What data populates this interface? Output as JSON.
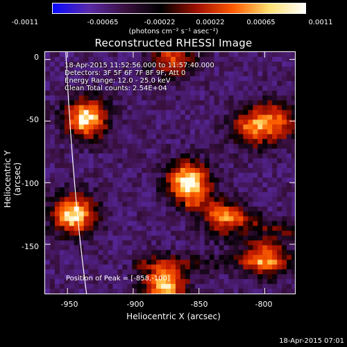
{
  "colorbar": {
    "ticks": [
      "-0.0011",
      "-0.00065",
      "-0.00022",
      "0.00022",
      "0.00065",
      "0.0011"
    ],
    "units": "(photons cm⁻² s⁻¹ asec⁻²)",
    "colors": [
      "#0a0aff",
      "#5a2aa8",
      "#3a1040",
      "#000000",
      "#a01000",
      "#ff5a00",
      "#ffe070",
      "#ffffff"
    ]
  },
  "title": "Reconstructed RHESSI Image",
  "info": {
    "time_range": "18-Apr-2015 11:52:56.000 to 11:57:40.000",
    "detectors": "Detectors: 3F 5F 6F 7F 8F 9F, Att 0",
    "energy_range": "Energy Range: 12.0 - 25.0 keV",
    "clean": "Clean     Total counts: 2.54E+04",
    "peak": "Position of Peak = [-858,-100]"
  },
  "axes": {
    "xlabel": "Heliocentric X (arcsec)",
    "ylabel": "Heliocentric Y (arcsec)",
    "xticks": [
      "-950",
      "-900",
      "-850",
      "-800"
    ],
    "yticks": [
      "0",
      "-50",
      "-100",
      "-150"
    ],
    "xlim": [
      -967,
      -777
    ],
    "ylim": [
      -190,
      6
    ]
  },
  "sources": [
    {
      "x": -936,
      "y": -48,
      "peak": 0.9
    },
    {
      "x": -858,
      "y": -100,
      "peak": 1.0
    },
    {
      "x": -945,
      "y": -126,
      "peak": 0.9
    },
    {
      "x": -876,
      "y": -182,
      "peak": 0.85
    },
    {
      "x": -810,
      "y": -55,
      "peak": 0.6
    },
    {
      "x": -790,
      "y": -50,
      "peak": 0.55
    },
    {
      "x": -870,
      "y": 0,
      "peak": 0.55
    },
    {
      "x": -800,
      "y": -160,
      "peak": 0.6
    },
    {
      "x": -830,
      "y": -130,
      "peak": 0.5
    }
  ],
  "timestamp": "18-Apr-2015 07:01"
}
